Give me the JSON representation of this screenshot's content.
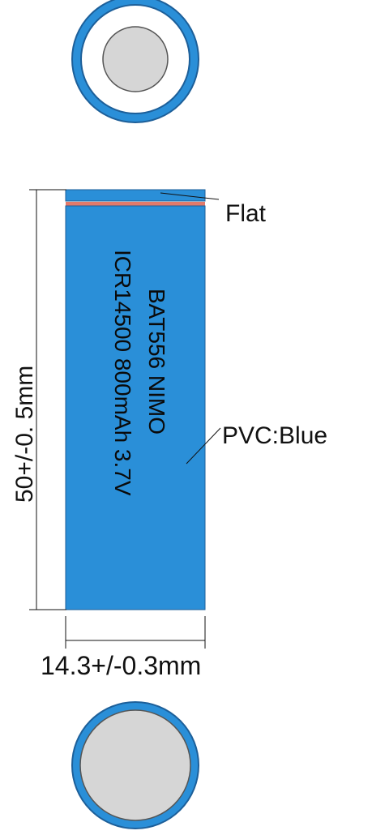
{
  "battery": {
    "label_line1": "BAT556 NIMO",
    "label_line2": "ICR14500 800mAh 3.7V",
    "wrap_color": "#2a8fd8",
    "cap_color": "#d6d6d6"
  },
  "callouts": {
    "flat": "Flat",
    "pvc": "PVC:Blue"
  },
  "dimensions": {
    "length": "50+/-0. 5mm",
    "diameter": "14.3+/-0.3mm"
  }
}
